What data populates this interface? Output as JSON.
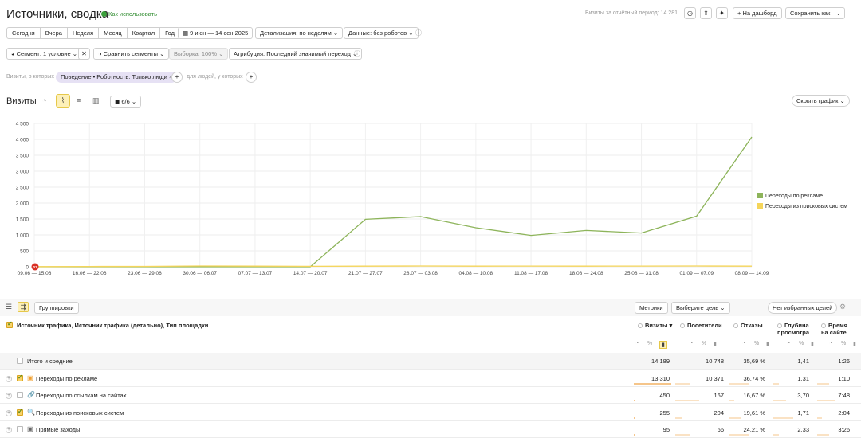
{
  "header": {
    "title": "Источники, сводка",
    "how_to_use": "Как использовать",
    "visits_period": "Визиты за отчётный период: 14 281",
    "to_dashboard": "+ На дашборд",
    "save_as": "Сохранить как"
  },
  "periods": [
    "Сегодня",
    "Вчера",
    "Неделя",
    "Месяц",
    "Квартал",
    "Год"
  ],
  "filters": {
    "date_range": "9 июн — 14 сен 2025",
    "detail": "Детализация: по неделям",
    "data": "Данные: без роботов",
    "segment": "Сегмент: 1 условие",
    "compare": "Сравнить сегменты",
    "sample": "Выборка: 100%",
    "attribution": "Атрибуция: Последний значимый переход"
  },
  "condition": {
    "prefix": "Визиты, в которых",
    "tag": "Поведение • Роботность: Только люди",
    "suffix": "для людей, у которых"
  },
  "chart_header": {
    "title": "Визиты",
    "metrics_count": "6/6",
    "hide": "Скрыть график"
  },
  "chart_data": {
    "type": "line",
    "categories": [
      "09.06 — 15.06",
      "16.06 — 22.06",
      "23.06 — 29.06",
      "30.06 — 06.07",
      "07.07 — 13.07",
      "14.07 — 20.07",
      "21.07 — 27.07",
      "28.07 — 03.08",
      "04.08 — 10.08",
      "11.08 — 17.08",
      "18.08 — 24.08",
      "25.08 — 31.08",
      "01.09 — 07.09",
      "08.09 — 14.09"
    ],
    "y_ticks": [
      "0",
      "500",
      "1 000",
      "1 500",
      "2 000",
      "2 500",
      "3 000",
      "3 500",
      "4 000",
      "4 500"
    ],
    "ylim": [
      0,
      4500
    ],
    "series": [
      {
        "name": "Переходы по рекламе",
        "color": "#8db45a",
        "values": [
          0,
          0,
          0,
          0,
          0,
          0,
          1490,
          1575,
          1225,
          985,
          1140,
          1060,
          1590,
          4075
        ]
      },
      {
        "name": "Переходы из поисковых систем",
        "color": "#f5d55a",
        "values": [
          5,
          10,
          12,
          25,
          20,
          15,
          20,
          25,
          20,
          22,
          20,
          22,
          25,
          20
        ]
      }
    ],
    "legend_position": "right",
    "marker_label": "01"
  },
  "toolbar": {
    "groupings": "Группировки",
    "metrics": "Метрики",
    "choose_goal": "Выберите цель",
    "no_fav_goals": "Нет избранных целей"
  },
  "table": {
    "dimension_header": "Источник трафика, Источник трафика (детально), Тип площадки",
    "columns": [
      "Визиты",
      "Посетители",
      "Отказы",
      "Глубина просмотра",
      "Время на сайте"
    ],
    "total": {
      "label": "Итого и средние",
      "values": [
        "14 189",
        "10 748",
        "35,69 %",
        "1,41",
        "1:26"
      ]
    },
    "rows": [
      {
        "label": "Переходы по рекламе",
        "values": [
          "13 310",
          "10 371",
          "36,74 %",
          "1,31",
          "1:10"
        ],
        "checked": true,
        "bar": 0.94
      },
      {
        "label": "Переходы по ссылкам на сайтах",
        "values": [
          "450",
          "167",
          "16,67 %",
          "3,70",
          "7:48"
        ],
        "checked": false,
        "bar": 0.03
      },
      {
        "label": "Переходы из поисковых систем",
        "values": [
          "255",
          "204",
          "19,61 %",
          "1,71",
          "2:04"
        ],
        "checked": true,
        "bar": 0.02
      },
      {
        "label": "Прямые заходы",
        "values": [
          "95",
          "66",
          "24,21 %",
          "2,33",
          "3:26"
        ],
        "checked": false,
        "bar": 0.01
      }
    ]
  }
}
